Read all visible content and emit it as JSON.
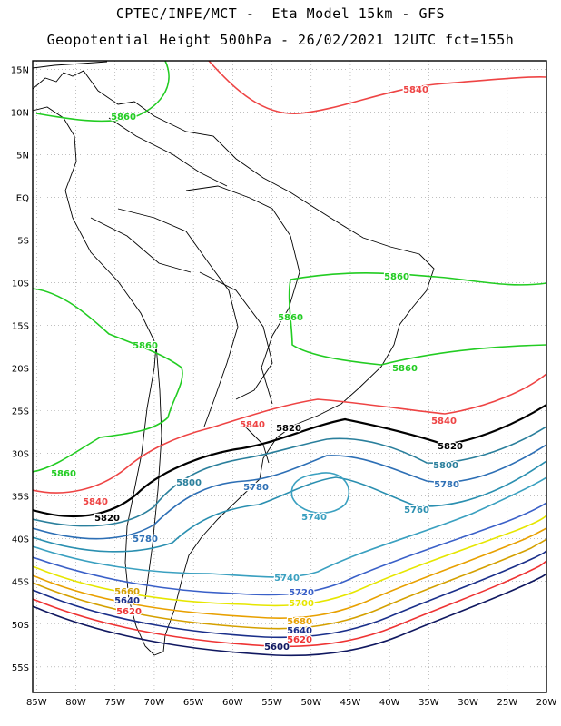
{
  "header": {
    "line1": "CPTEC/INPE/MCT -  Eta Model 15km - GFS",
    "line2": "Geopotential Height 500hPa - 26/02/2021 12UTC fct=155h"
  },
  "map": {
    "lat_labels": [
      "15N",
      "10N",
      "5N",
      "EQ",
      "5S",
      "10S",
      "15S",
      "20S",
      "25S",
      "30S",
      "35S",
      "40S",
      "45S",
      "50S",
      "55S"
    ],
    "lon_labels": [
      "85W",
      "80W",
      "75W",
      "70W",
      "65W",
      "60W",
      "55W",
      "50W",
      "45W",
      "40W",
      "35W",
      "30W",
      "25W",
      "20W"
    ],
    "lat_range": [
      16,
      -58
    ],
    "lon_range": [
      -85.5,
      -20
    ],
    "grid": true
  },
  "contours": [
    {
      "value": "5860",
      "color": "#22cc22",
      "labels": [
        "5860",
        "5860",
        "5860",
        "5860",
        "5860",
        "5860"
      ]
    },
    {
      "value": "5840",
      "color": "#ee4444",
      "labels": [
        "5840",
        "5840",
        "5840",
        "5840"
      ]
    },
    {
      "value": "5820",
      "color": "#000000",
      "labels": [
        "5820",
        "5820",
        "5820"
      ]
    },
    {
      "value": "5800",
      "color": "#2a7f9c",
      "labels": [
        "5800",
        "5800"
      ]
    },
    {
      "value": "5780",
      "color": "#2d6fb5",
      "labels": [
        "5780",
        "5780",
        "5780"
      ]
    },
    {
      "value": "5760",
      "color": "#2a8fb0",
      "labels": [
        "5760"
      ]
    },
    {
      "value": "5740",
      "color": "#3aa0c0",
      "labels": [
        "5740",
        "5740"
      ]
    },
    {
      "value": "5720",
      "color": "#3a60c8",
      "labels": [
        "5720"
      ]
    },
    {
      "value": "5700",
      "color": "#e6e600",
      "labels": [
        "5700"
      ]
    },
    {
      "value": "5680",
      "color": "#e8a000",
      "labels": [
        "5680"
      ]
    },
    {
      "value": "5660",
      "color": "#d4a000",
      "labels": [
        "5660"
      ]
    },
    {
      "value": "5640",
      "color": "#1a2f8a",
      "labels": [
        "5640",
        "5640"
      ]
    },
    {
      "value": "5620",
      "color": "#ee3333",
      "labels": [
        "5620",
        "5620"
      ]
    },
    {
      "value": "5600",
      "color": "#101860",
      "labels": [
        "5600"
      ]
    }
  ]
}
